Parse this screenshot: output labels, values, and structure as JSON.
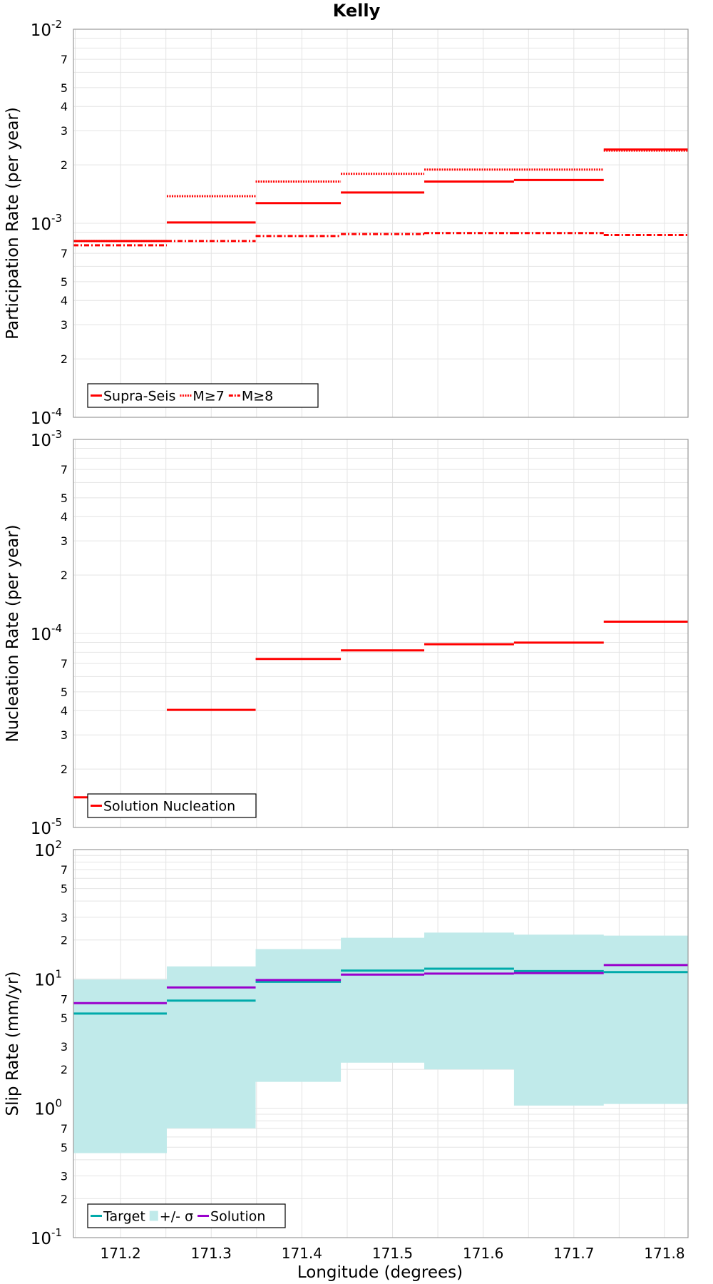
{
  "figure": {
    "title": "Kelly",
    "xlabel": "Longitude (degrees)",
    "x_ticks": [
      "171.2",
      "171.3",
      "171.4",
      "171.5",
      "171.6",
      "171.7",
      "171.8"
    ],
    "xlim": [
      171.148,
      171.826
    ]
  },
  "chart_data": [
    {
      "type": "line",
      "ylabel": "Participation Rate (per year)",
      "yscale": "log",
      "ylim": [
        0.0001,
        0.01
      ],
      "y_major_ticks": [
        {
          "base": "10",
          "exp": "-2"
        },
        {
          "base": "10",
          "exp": "-3"
        },
        {
          "base": "10",
          "exp": "-4"
        }
      ],
      "y_minor_labels": [
        "7",
        "5",
        "4",
        "3",
        "2",
        "7",
        "5",
        "4",
        "3",
        "2"
      ],
      "x_edges": [
        171.148,
        171.251,
        171.349,
        171.443,
        171.535,
        171.634,
        171.733,
        171.826
      ],
      "grid": true,
      "legend_position": "bottom-left",
      "series": [
        {
          "name": "Supra-Seis",
          "values": [
            0.00081,
            0.00101,
            0.00127,
            0.00144,
            0.00164,
            0.00167,
            0.0024
          ],
          "color": "#ff0000",
          "dash": "solid"
        },
        {
          "name": "M≥7",
          "values": [
            0.00081,
            0.00138,
            0.00164,
            0.0018,
            0.00189,
            0.00189,
            0.00237
          ],
          "color": "#ff0000",
          "dash": "dotted"
        },
        {
          "name": "M≥8",
          "values": [
            0.00077,
            0.00081,
            0.00086,
            0.00088,
            0.00089,
            0.00089,
            0.00087
          ],
          "color": "#ff0000",
          "dash": "dashdot"
        }
      ]
    },
    {
      "type": "line",
      "ylabel": "Nucleation Rate (per year)",
      "yscale": "log",
      "ylim": [
        1e-05,
        0.001
      ],
      "y_major_ticks": [
        {
          "base": "10",
          "exp": "-3"
        },
        {
          "base": "10",
          "exp": "-4"
        },
        {
          "base": "10",
          "exp": "-5"
        }
      ],
      "y_minor_labels": [
        "7",
        "5",
        "4",
        "3",
        "2",
        "7",
        "5",
        "4",
        "3",
        "2"
      ],
      "x_edges": [
        171.148,
        171.251,
        171.349,
        171.443,
        171.535,
        171.634,
        171.733,
        171.826
      ],
      "grid": true,
      "legend_position": "bottom-left",
      "series": [
        {
          "name": "Solution Nucleation",
          "values": [
            1.43e-05,
            4.04e-05,
            7.39e-05,
            8.18e-05,
            8.8e-05,
            8.97e-05,
            0.000115
          ],
          "color": "#ff0000",
          "dash": "solid"
        }
      ]
    },
    {
      "type": "line",
      "ylabel": "Slip Rate (mm/yr)",
      "yscale": "log",
      "ylim": [
        0.1,
        100
      ],
      "y_major_ticks": [
        {
          "base": "10",
          "exp": "2"
        },
        {
          "base": "10",
          "exp": "1"
        },
        {
          "base": "10",
          "exp": "0"
        },
        {
          "base": "10",
          "exp": "-1"
        }
      ],
      "y_minor_labels": [
        "7",
        "5",
        "3",
        "2",
        "7",
        "5",
        "3",
        "2",
        "7",
        "5",
        "3",
        "2"
      ],
      "x_edges": [
        171.148,
        171.251,
        171.349,
        171.443,
        171.535,
        171.634,
        171.733,
        171.826
      ],
      "grid": true,
      "legend_position": "bottom-left",
      "series": [
        {
          "name": "Target",
          "values": [
            5.4,
            6.8,
            9.5,
            11.6,
            12.0,
            11.5,
            11.3
          ],
          "color": "#00aaaa"
        },
        {
          "name": "+/- σ",
          "type": "band",
          "lower": [
            0.45,
            0.7,
            1.6,
            2.25,
            2.0,
            1.05,
            1.08
          ],
          "upper": [
            9.9,
            12.5,
            17.0,
            20.8,
            22.8,
            22.0,
            21.6
          ],
          "color": "#c0eaea"
        },
        {
          "name": "Solution",
          "values": [
            6.5,
            8.6,
            9.8,
            10.8,
            11.0,
            11.1,
            12.8
          ],
          "color": "#9900cc"
        }
      ]
    }
  ]
}
